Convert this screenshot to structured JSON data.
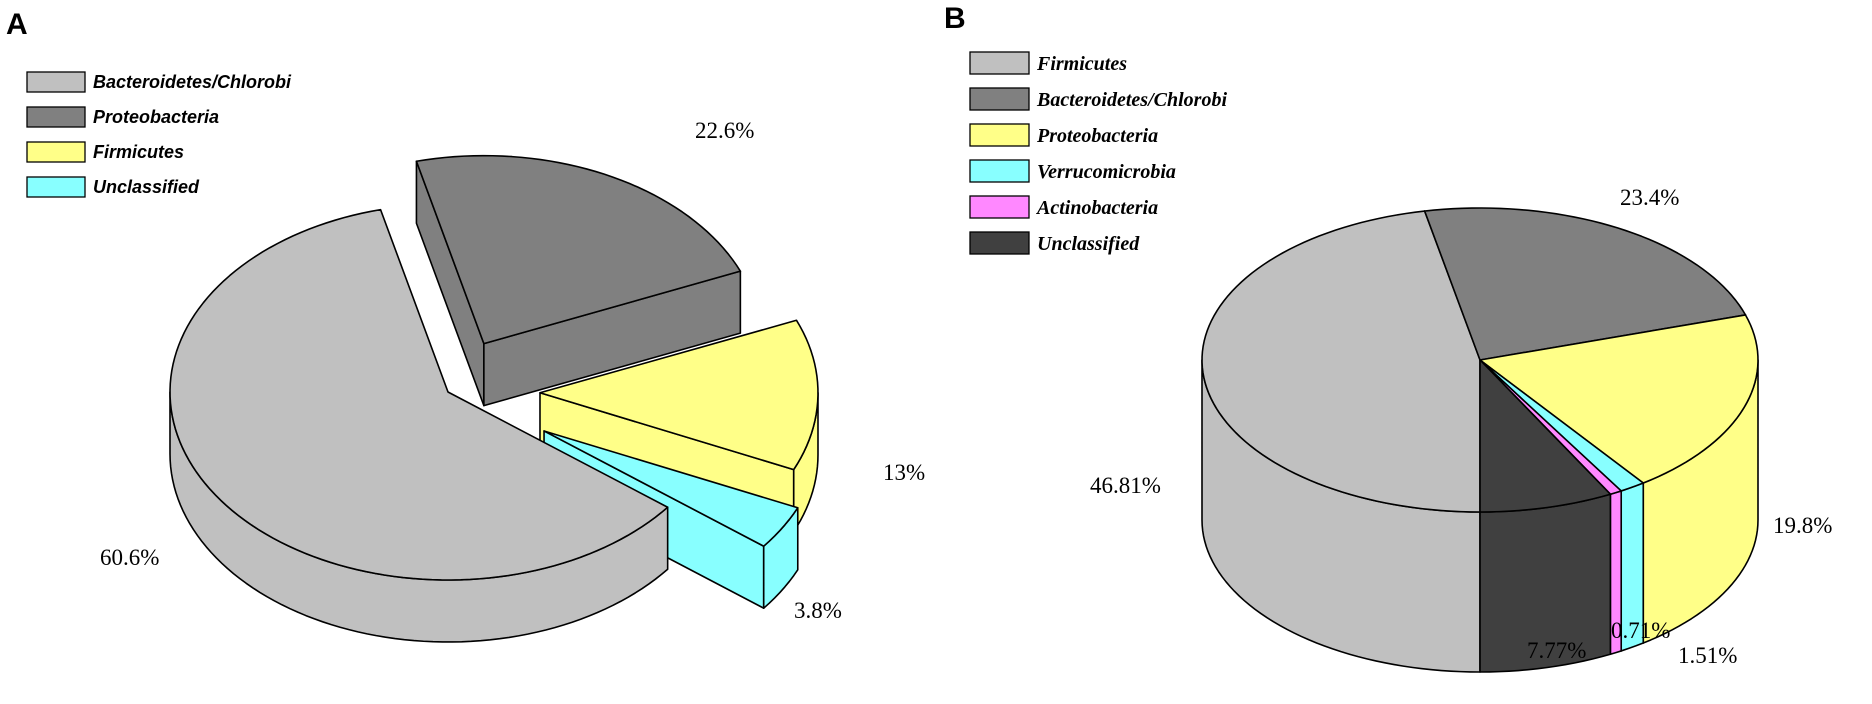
{
  "chart_data": [
    {
      "type": "pie",
      "panel_label": "A",
      "legend": {
        "placement": "top-left",
        "entries": [
          {
            "name": "Bacteroidetes/Chlorobi",
            "color": "#c0c0c0"
          },
          {
            "name": "Proteobacteria",
            "color": "#808080"
          },
          {
            "name": "Firmicutes",
            "color": "#ffff88"
          },
          {
            "name": "Unclassified",
            "color": "#88ffff"
          }
        ]
      },
      "slices": [
        {
          "name": "Bacteroidetes/Chlorobi",
          "value": 60.6,
          "label": "60.6%",
          "color": "#c0c0c0"
        },
        {
          "name": "Proteobacteria",
          "value": 22.6,
          "label": "22.6%",
          "color": "#808080"
        },
        {
          "name": "Firmicutes",
          "value": 13,
          "label": "13%",
          "color": "#ffff88"
        },
        {
          "name": "Unclassified",
          "value": 3.8,
          "label": "3.8%",
          "color": "#88ffff"
        }
      ],
      "style": "3d-exploded"
    },
    {
      "type": "pie",
      "panel_label": "B",
      "legend": {
        "placement": "top-left",
        "entries": [
          {
            "name": "Firmicutes",
            "color": "#c0c0c0"
          },
          {
            "name": "Bacteroidetes/Chlorobi",
            "color": "#808080"
          },
          {
            "name": "Proteobacteria",
            "color": "#ffff88"
          },
          {
            "name": "Verrucomicrobia",
            "color": "#88ffff"
          },
          {
            "name": "Actinobacteria",
            "color": "#ff88ff"
          },
          {
            "name": "Unclassified",
            "color": "#404040"
          }
        ]
      },
      "slices": [
        {
          "name": "Firmicutes",
          "value": 46.81,
          "label": "46.81%",
          "color": "#c0c0c0"
        },
        {
          "name": "Bacteroidetes/Chlorobi",
          "value": 23.4,
          "label": "23.4%",
          "color": "#808080"
        },
        {
          "name": "Proteobacteria",
          "value": 19.8,
          "label": "19.8%",
          "color": "#ffff88"
        },
        {
          "name": "Verrucomicrobia",
          "value": 1.51,
          "label": "1.51%",
          "color": "#88ffff"
        },
        {
          "name": "Actinobacteria",
          "value": 0.71,
          "label": "0.71%",
          "color": "#ff88ff"
        },
        {
          "name": "Unclassified",
          "value": 7.77,
          "label": "7.77%",
          "color": "#404040"
        }
      ],
      "style": "3d"
    }
  ]
}
